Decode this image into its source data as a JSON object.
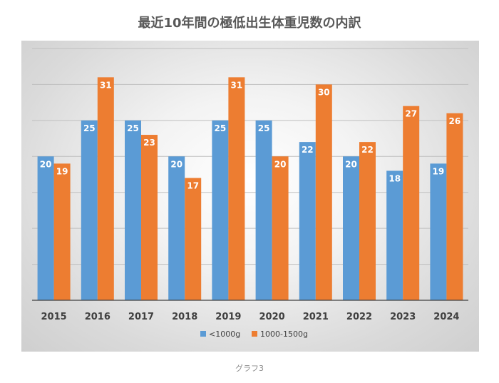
{
  "caption": "グラフ3",
  "colors": {
    "series_1": "#5b9bd5",
    "series_2": "#ed7d31",
    "grid": "#bfbfbf",
    "axis": "#404040",
    "label": "#404040"
  },
  "chart_data": {
    "type": "bar",
    "title": "最近10年間の極低出生体重児数の内訳",
    "xlabel": "",
    "ylabel": "",
    "categories": [
      "2015",
      "2016",
      "2017",
      "2018",
      "2019",
      "2020",
      "2021",
      "2022",
      "2023",
      "2024"
    ],
    "series": [
      {
        "name": "<1000g",
        "values": [
          20,
          25,
          25,
          20,
          25,
          25,
          22,
          20,
          18,
          19
        ]
      },
      {
        "name": "1000-1500g",
        "values": [
          19,
          31,
          23,
          17,
          31,
          20,
          30,
          22,
          27,
          26
        ]
      }
    ],
    "ylim": [
      0,
      35
    ],
    "ytick_step": 5,
    "grid": true,
    "legend_position": "bottom",
    "data_labels": true
  }
}
